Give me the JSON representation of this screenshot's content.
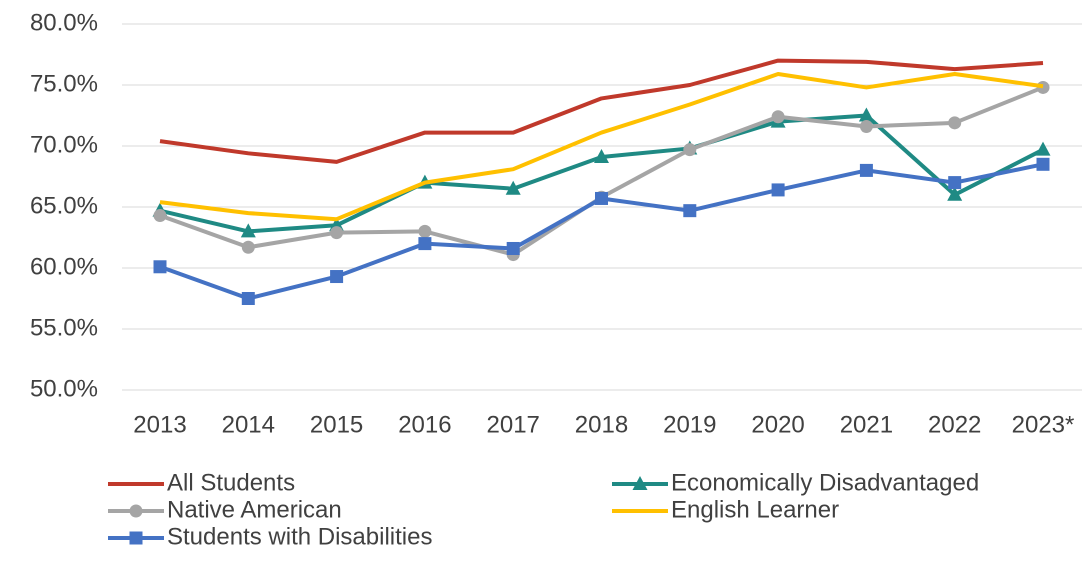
{
  "chart_data": {
    "type": "line",
    "categories": [
      "2013",
      "2014",
      "2015",
      "2016",
      "2017",
      "2018",
      "2019",
      "2020",
      "2021",
      "2022",
      "2023*"
    ],
    "series": [
      {
        "name": "All Students",
        "color": "#c0392b",
        "marker": "none",
        "values": [
          70.4,
          69.4,
          68.7,
          71.1,
          71.1,
          73.9,
          75.0,
          77.0,
          76.9,
          76.3,
          76.8
        ]
      },
      {
        "name": "Economically Disadvantaged",
        "color": "#1f8a84",
        "marker": "triangle",
        "values": [
          64.7,
          63.0,
          63.5,
          67.0,
          66.5,
          69.1,
          69.8,
          72.0,
          72.5,
          66.0,
          69.7
        ]
      },
      {
        "name": "Native American",
        "color": "#a5a5a5",
        "marker": "circle",
        "values": [
          64.3,
          61.7,
          62.9,
          63.0,
          61.1,
          65.8,
          69.7,
          72.4,
          71.6,
          71.9,
          74.8
        ]
      },
      {
        "name": "English Learner",
        "color": "#ffc000",
        "marker": "none",
        "values": [
          65.4,
          64.5,
          64.0,
          67.0,
          68.1,
          71.1,
          73.4,
          75.9,
          74.8,
          75.9,
          74.9
        ]
      },
      {
        "name": "Students with Disabilities",
        "color": "#4472c4",
        "marker": "square",
        "values": [
          60.1,
          57.5,
          59.3,
          62.0,
          61.6,
          65.7,
          64.7,
          66.4,
          68.0,
          67.0,
          68.5
        ]
      }
    ],
    "ylim": [
      50,
      80
    ],
    "yticks": [
      {
        "value": 50,
        "label": "50.0%"
      },
      {
        "value": 55,
        "label": "55.0%"
      },
      {
        "value": 60,
        "label": "60.0%"
      },
      {
        "value": 65,
        "label": "65.0%"
      },
      {
        "value": 70,
        "label": "70.0%"
      },
      {
        "value": 75,
        "label": "75.0%"
      },
      {
        "value": 80,
        "label": "80.0%"
      }
    ],
    "grid": true,
    "legend": "bottom"
  }
}
